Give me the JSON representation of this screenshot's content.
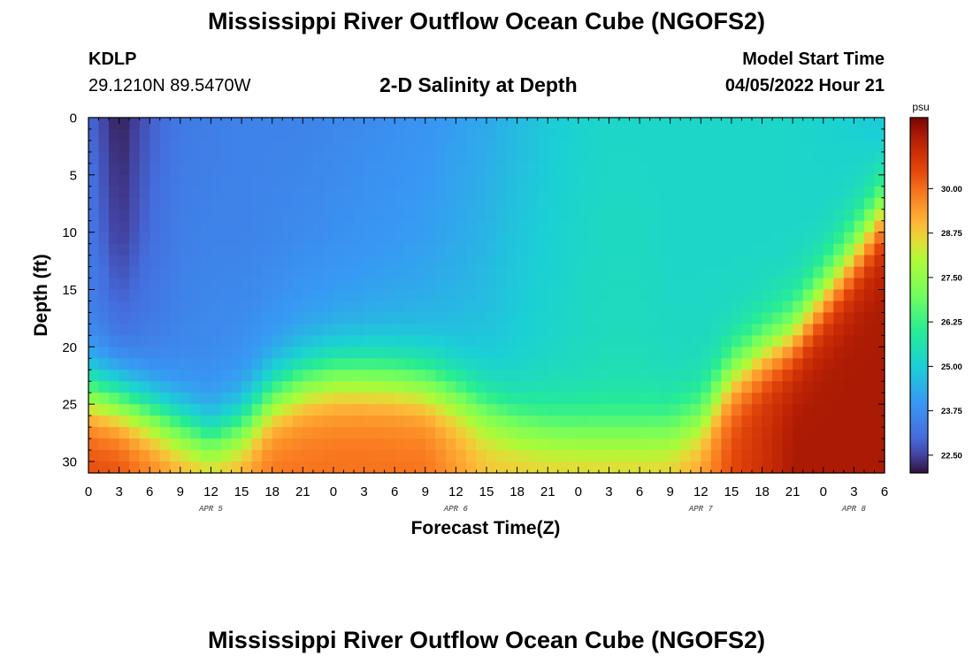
{
  "header": {
    "title": "Mississippi River Outflow Ocean Cube (NGOFS2)",
    "station_id": "KDLP",
    "station_coords": "29.1210N  89.5470W",
    "plot_title": "2-D Salinity at Depth",
    "model_start_label": "Model Start Time",
    "model_start_value": "04/05/2022 Hour 21"
  },
  "footer": {
    "title": "Mississippi River Outflow Ocean Cube (NGOFS2)"
  },
  "chart_data": {
    "type": "heatmap",
    "xlabel": "Forecast Time(Z)",
    "ylabel": "Depth (ft)",
    "x_tick_labels": [
      "0",
      "3",
      "6",
      "9",
      "12",
      "15",
      "18",
      "21",
      "0",
      "3",
      "6",
      "9",
      "12",
      "15",
      "18",
      "21",
      "0",
      "3",
      "6",
      "9",
      "12",
      "15",
      "18",
      "21",
      "0",
      "3",
      "6"
    ],
    "date_labels": [
      {
        "label": "APR 5",
        "tick_index": 4
      },
      {
        "label": "APR 6",
        "tick_index": 12
      },
      {
        "label": "APR 7",
        "tick_index": 20
      },
      {
        "label": "APR 8",
        "tick_index": 25
      }
    ],
    "x_range_hours": [
      0,
      78
    ],
    "y_ticks": [
      0,
      5,
      10,
      15,
      20,
      25,
      30
    ],
    "ylim": [
      0,
      31
    ],
    "y_inverted": true,
    "colorbar": {
      "unit": "psu",
      "ticks": [
        "30.00",
        "28.75",
        "27.50",
        "26.25",
        "25.00",
        "23.75",
        "22.50"
      ],
      "range": [
        22.0,
        32.0
      ]
    },
    "salinity_profiles": [
      {
        "hour": 0,
        "top": 23.0,
        "mid": 23.3,
        "deep": 23.6,
        "base": 30.5,
        "halocline_depth": 24.0
      },
      {
        "hour": 3,
        "top": 22.1,
        "mid": 22.4,
        "deep": 23.3,
        "base": 30.5,
        "halocline_depth": 24.8
      },
      {
        "hour": 6,
        "top": 22.8,
        "mid": 23.0,
        "deep": 23.4,
        "base": 30.0,
        "halocline_depth": 25.8
      },
      {
        "hour": 9,
        "top": 23.3,
        "mid": 23.4,
        "deep": 23.6,
        "base": 29.5,
        "halocline_depth": 27.0
      },
      {
        "hour": 12,
        "top": 23.4,
        "mid": 23.5,
        "deep": 23.7,
        "base": 29.5,
        "halocline_depth": 28.3
      },
      {
        "hour": 15,
        "top": 23.5,
        "mid": 23.5,
        "deep": 23.8,
        "base": 29.5,
        "halocline_depth": 27.0
      },
      {
        "hour": 18,
        "top": 23.5,
        "mid": 23.6,
        "deep": 24.0,
        "base": 30.0,
        "halocline_depth": 24.5
      },
      {
        "hour": 21,
        "top": 23.5,
        "mid": 23.7,
        "deep": 24.2,
        "base": 30.0,
        "halocline_depth": 23.2
      },
      {
        "hour": 24,
        "top": 23.6,
        "mid": 23.8,
        "deep": 24.3,
        "base": 30.0,
        "halocline_depth": 22.6
      },
      {
        "hour": 27,
        "top": 23.7,
        "mid": 23.9,
        "deep": 24.4,
        "base": 30.0,
        "halocline_depth": 22.6
      },
      {
        "hour": 30,
        "top": 23.8,
        "mid": 24.0,
        "deep": 24.5,
        "base": 30.0,
        "halocline_depth": 22.8
      },
      {
        "hour": 33,
        "top": 23.9,
        "mid": 24.1,
        "deep": 24.6,
        "base": 30.0,
        "halocline_depth": 23.3
      },
      {
        "hour": 36,
        "top": 24.1,
        "mid": 24.3,
        "deep": 24.7,
        "base": 29.5,
        "halocline_depth": 24.3
      },
      {
        "hour": 39,
        "top": 24.3,
        "mid": 24.5,
        "deep": 24.8,
        "base": 29.0,
        "halocline_depth": 25.6
      },
      {
        "hour": 42,
        "top": 24.6,
        "mid": 24.8,
        "deep": 25.0,
        "base": 29.0,
        "halocline_depth": 26.7
      },
      {
        "hour": 45,
        "top": 24.9,
        "mid": 25.0,
        "deep": 25.2,
        "base": 29.0,
        "halocline_depth": 27.3
      },
      {
        "hour": 48,
        "top": 25.1,
        "mid": 25.2,
        "deep": 25.3,
        "base": 29.0,
        "halocline_depth": 27.5
      },
      {
        "hour": 51,
        "top": 25.2,
        "mid": 25.3,
        "deep": 25.4,
        "base": 29.0,
        "halocline_depth": 27.6
      },
      {
        "hour": 54,
        "top": 25.2,
        "mid": 25.3,
        "deep": 25.4,
        "base": 29.0,
        "halocline_depth": 27.6
      },
      {
        "hour": 57,
        "top": 25.2,
        "mid": 25.2,
        "deep": 25.3,
        "base": 29.0,
        "halocline_depth": 27.4
      },
      {
        "hour": 60,
        "top": 25.2,
        "mid": 25.2,
        "deep": 25.3,
        "base": 29.5,
        "halocline_depth": 26.3
      },
      {
        "hour": 63,
        "top": 25.2,
        "mid": 25.2,
        "deep": 25.3,
        "base": 30.5,
        "halocline_depth": 22.5
      },
      {
        "hour": 66,
        "top": 25.2,
        "mid": 25.2,
        "deep": 25.3,
        "base": 31.0,
        "halocline_depth": 20.5
      },
      {
        "hour": 69,
        "top": 25.2,
        "mid": 25.2,
        "deep": 25.4,
        "base": 31.5,
        "halocline_depth": 19.0
      },
      {
        "hour": 72,
        "top": 25.1,
        "mid": 25.2,
        "deep": 25.6,
        "base": 31.5,
        "halocline_depth": 15.5
      },
      {
        "hour": 75,
        "top": 25.0,
        "mid": 25.3,
        "deep": 25.8,
        "base": 31.5,
        "halocline_depth": 12.0
      },
      {
        "hour": 78,
        "top": 24.8,
        "mid": 25.4,
        "deep": 26.0,
        "base": 31.5,
        "halocline_depth": 8.0
      }
    ]
  }
}
